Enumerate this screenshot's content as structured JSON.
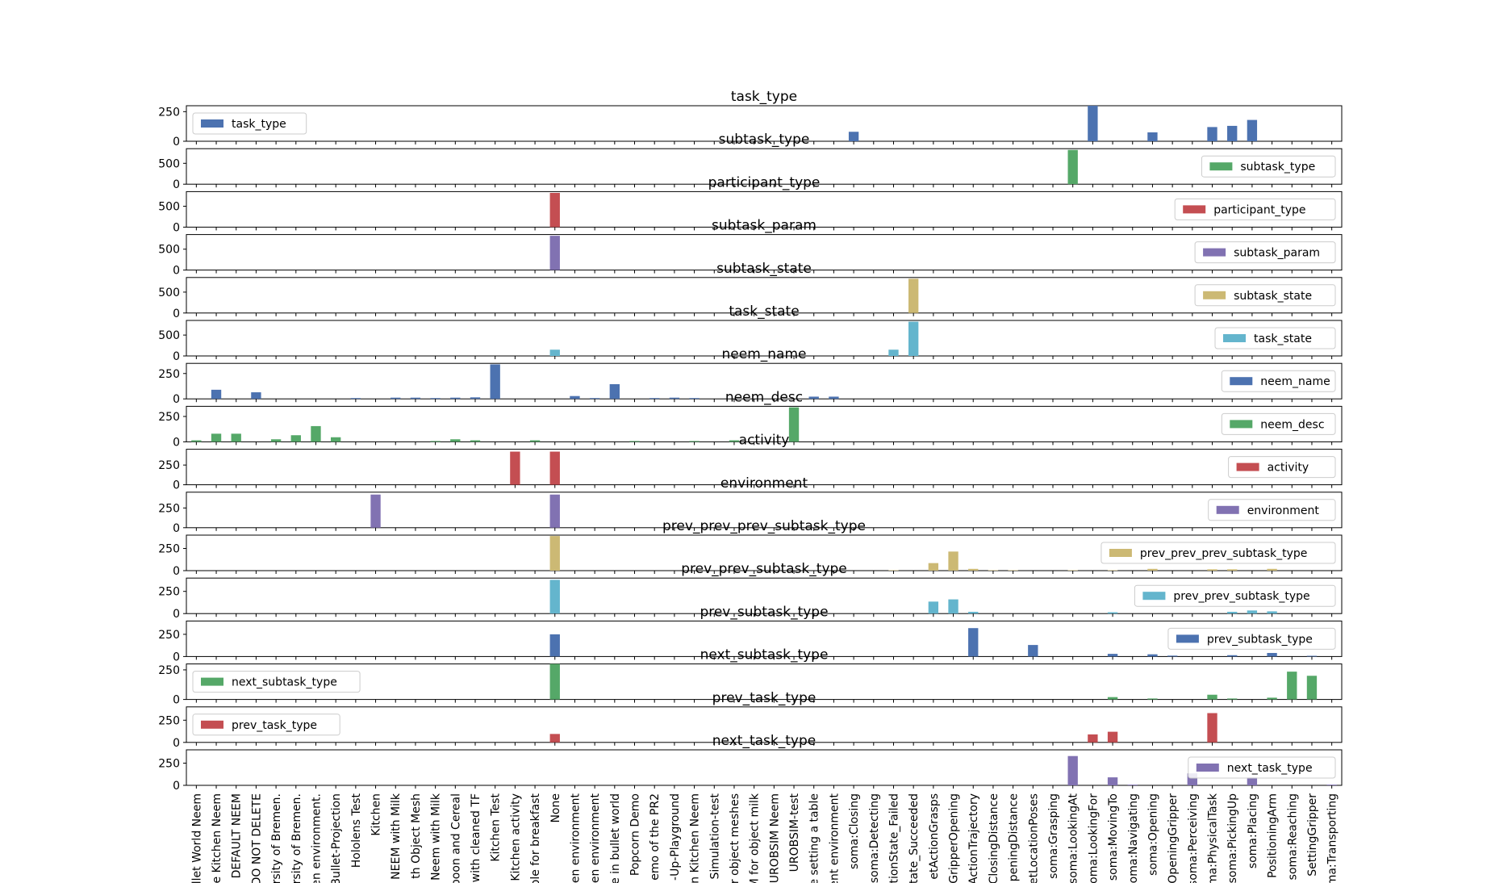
{
  "chart_data": {
    "type": "bar",
    "layout": "stacked-subplots",
    "categories": [
      "Bullet World Neem",
      "ne Kitchen Neem",
      "DEFAULT NEEM",
      "DO NOT DELETE",
      "ersity of Bremen.",
      "ersity of Bremen.",
      "en environment.",
      "Bullet-Projection",
      "Hololens Test",
      "Kitchen",
      "NEEM with Milk",
      "th Object Mesh",
      "Neem with Milk",
      "poon and Cereal",
      "with cleaned TF",
      "Kitchen Test",
      "Kitchen activity",
      "ble for breakfast",
      "None",
      "en environment",
      "en environment",
      "e in bullet world",
      "Popcorn Demo",
      "emo of the PR2",
      "-Up-Playground",
      "n Kitchen Neem",
      "Simulation-test",
      "r object meshes",
      "M for object milk",
      "UROBSIM Neem",
      "UROBSIM-test",
      "e setting a table",
      "ent environment",
      "soma:Closing",
      "soma:Detecting",
      "ctionState_Failed",
      "tate_Succeeded",
      "etActionGrasps",
      "GripperOpening",
      "ActionTrajectory",
      "ClosingDistance",
      "peningDistance",
      "etLocationPoses",
      "soma:Grasping",
      "soma:LookingAt",
      "soma:LookingFor",
      "soma:MovingTo",
      "soma:Navigating",
      "soma:Opening",
      "OpeningGripper",
      "soma:Perceiving",
      "soma:PhysicalTask",
      "soma:PickingUp",
      "soma:Placing",
      "PositioningArm",
      "soma:Reaching",
      "SettingGripper",
      "soma:Transporting"
    ],
    "series": [
      {
        "name": "task_type",
        "title": "task_type",
        "color": "#4c72b0",
        "legend": "upper left",
        "yticks": [
          0,
          250
        ],
        "ylim": [
          0,
          300
        ],
        "values": {
          "33": 80,
          "45": 300,
          "48": 75,
          "51": 120,
          "52": 130,
          "53": 180
        }
      },
      {
        "name": "subtask_type",
        "title": "subtask_type",
        "color": "#55a868",
        "legend": "upper right",
        "yticks": [
          0,
          500
        ],
        "ylim": [
          0,
          850
        ],
        "values": {
          "44": 820
        }
      },
      {
        "name": "participant_type",
        "title": "participant_type",
        "color": "#c44e52",
        "legend": "upper right",
        "yticks": [
          0,
          500
        ],
        "ylim": [
          0,
          850
        ],
        "values": {
          "18": 820
        }
      },
      {
        "name": "subtask_param",
        "title": "subtask_param",
        "color": "#8172b2",
        "legend": "upper right",
        "yticks": [
          0,
          500
        ],
        "ylim": [
          0,
          850
        ],
        "values": {
          "18": 820
        }
      },
      {
        "name": "subtask_state",
        "title": "subtask_state",
        "color": "#ccb974",
        "legend": "upper right",
        "yticks": [
          0,
          500
        ],
        "ylim": [
          0,
          850
        ],
        "values": {
          "36": 820
        }
      },
      {
        "name": "task_state",
        "title": "task_state",
        "color": "#64b5cd",
        "legend": "upper right",
        "yticks": [
          0,
          500
        ],
        "ylim": [
          0,
          850
        ],
        "values": {
          "18": 150,
          "35": 150,
          "36": 820
        }
      },
      {
        "name": "neem_name",
        "title": "neem_name",
        "color": "#4c72b0",
        "legend": "upper right",
        "yticks": [
          0,
          250
        ],
        "ylim": [
          0,
          350
        ],
        "values": {
          "1": 90,
          "3": 65,
          "8": 8,
          "10": 12,
          "11": 12,
          "12": 8,
          "13": 12,
          "14": 15,
          "15": 340,
          "19": 28,
          "20": 8,
          "21": 145,
          "23": 8,
          "24": 12,
          "25": 8,
          "31": 22,
          "32": 22
        }
      },
      {
        "name": "neem_desc",
        "title": "neem_desc",
        "color": "#55a868",
        "legend": "upper right",
        "yticks": [
          0,
          250
        ],
        "ylim": [
          0,
          350
        ],
        "values": {
          "0": 15,
          "1": 80,
          "2": 80,
          "4": 25,
          "5": 65,
          "6": 155,
          "7": 45,
          "12": 8,
          "13": 25,
          "14": 15,
          "17": 15,
          "22": 8,
          "25": 8,
          "27": 15,
          "30": 340
        }
      },
      {
        "name": "activity",
        "title": "activity",
        "color": "#c44e52",
        "legend": "upper right",
        "yticks": [
          0,
          250
        ],
        "ylim": [
          0,
          450
        ],
        "values": {
          "16": 420,
          "18": 420
        }
      },
      {
        "name": "environment",
        "title": "environment",
        "color": "#8172b2",
        "legend": "upper right",
        "yticks": [
          0,
          250
        ],
        "ylim": [
          0,
          450
        ],
        "values": {
          "9": 420,
          "18": 420
        }
      },
      {
        "name": "prev_prev_prev_subtask_type",
        "title": "prev_prev_prev_subtask_type",
        "color": "#ccb974",
        "legend": "upper right",
        "yticks": [
          0,
          250
        ],
        "ylim": [
          0,
          400
        ],
        "values": {
          "18": 390,
          "35": 5,
          "37": 85,
          "38": 215,
          "39": 20,
          "40": 5,
          "41": 5,
          "44": 5,
          "46": 5,
          "48": 20,
          "51": 15,
          "52": 15,
          "54": 20
        }
      },
      {
        "name": "prev_prev_subtask_type",
        "title": "prev_prev_subtask_type",
        "color": "#64b5cd",
        "legend": "upper right",
        "yticks": [
          0,
          250
        ],
        "ylim": [
          0,
          400
        ],
        "values": {
          "18": 380,
          "37": 135,
          "38": 160,
          "39": 20,
          "46": 15,
          "52": 20,
          "53": 35,
          "54": 25
        }
      },
      {
        "name": "prev_subtask_type",
        "title": "prev_subtask_type",
        "color": "#4c72b0",
        "legend": "upper right",
        "yticks": [
          0,
          250
        ],
        "ylim": [
          0,
          400
        ],
        "values": {
          "18": 250,
          "39": 320,
          "42": 130,
          "46": 30,
          "48": 25,
          "49": 10,
          "52": 15,
          "54": 40,
          "56": 8
        }
      },
      {
        "name": "next_subtask_type",
        "title": "next_subtask_type",
        "color": "#55a868",
        "legend": "upper left",
        "yticks": [
          0,
          250
        ],
        "ylim": [
          0,
          300
        ],
        "values": {
          "18": 300,
          "46": 20,
          "48": 8,
          "51": 40,
          "52": 8,
          "54": 15,
          "55": 235,
          "56": 200
        }
      },
      {
        "name": "prev_task_type",
        "title": "prev_task_type",
        "color": "#c44e52",
        "legend": "upper left",
        "yticks": [
          0,
          250
        ],
        "ylim": [
          0,
          400
        ],
        "values": {
          "18": 95,
          "45": 90,
          "46": 120,
          "51": 330
        }
      },
      {
        "name": "next_task_type",
        "title": "next_task_type",
        "color": "#8172b2",
        "legend": "upper right",
        "yticks": [
          0,
          250
        ],
        "ylim": [
          0,
          400
        ],
        "values": {
          "44": 330,
          "46": 90,
          "47": 8,
          "50": 135,
          "53": 90,
          "57": 8
        }
      }
    ]
  }
}
